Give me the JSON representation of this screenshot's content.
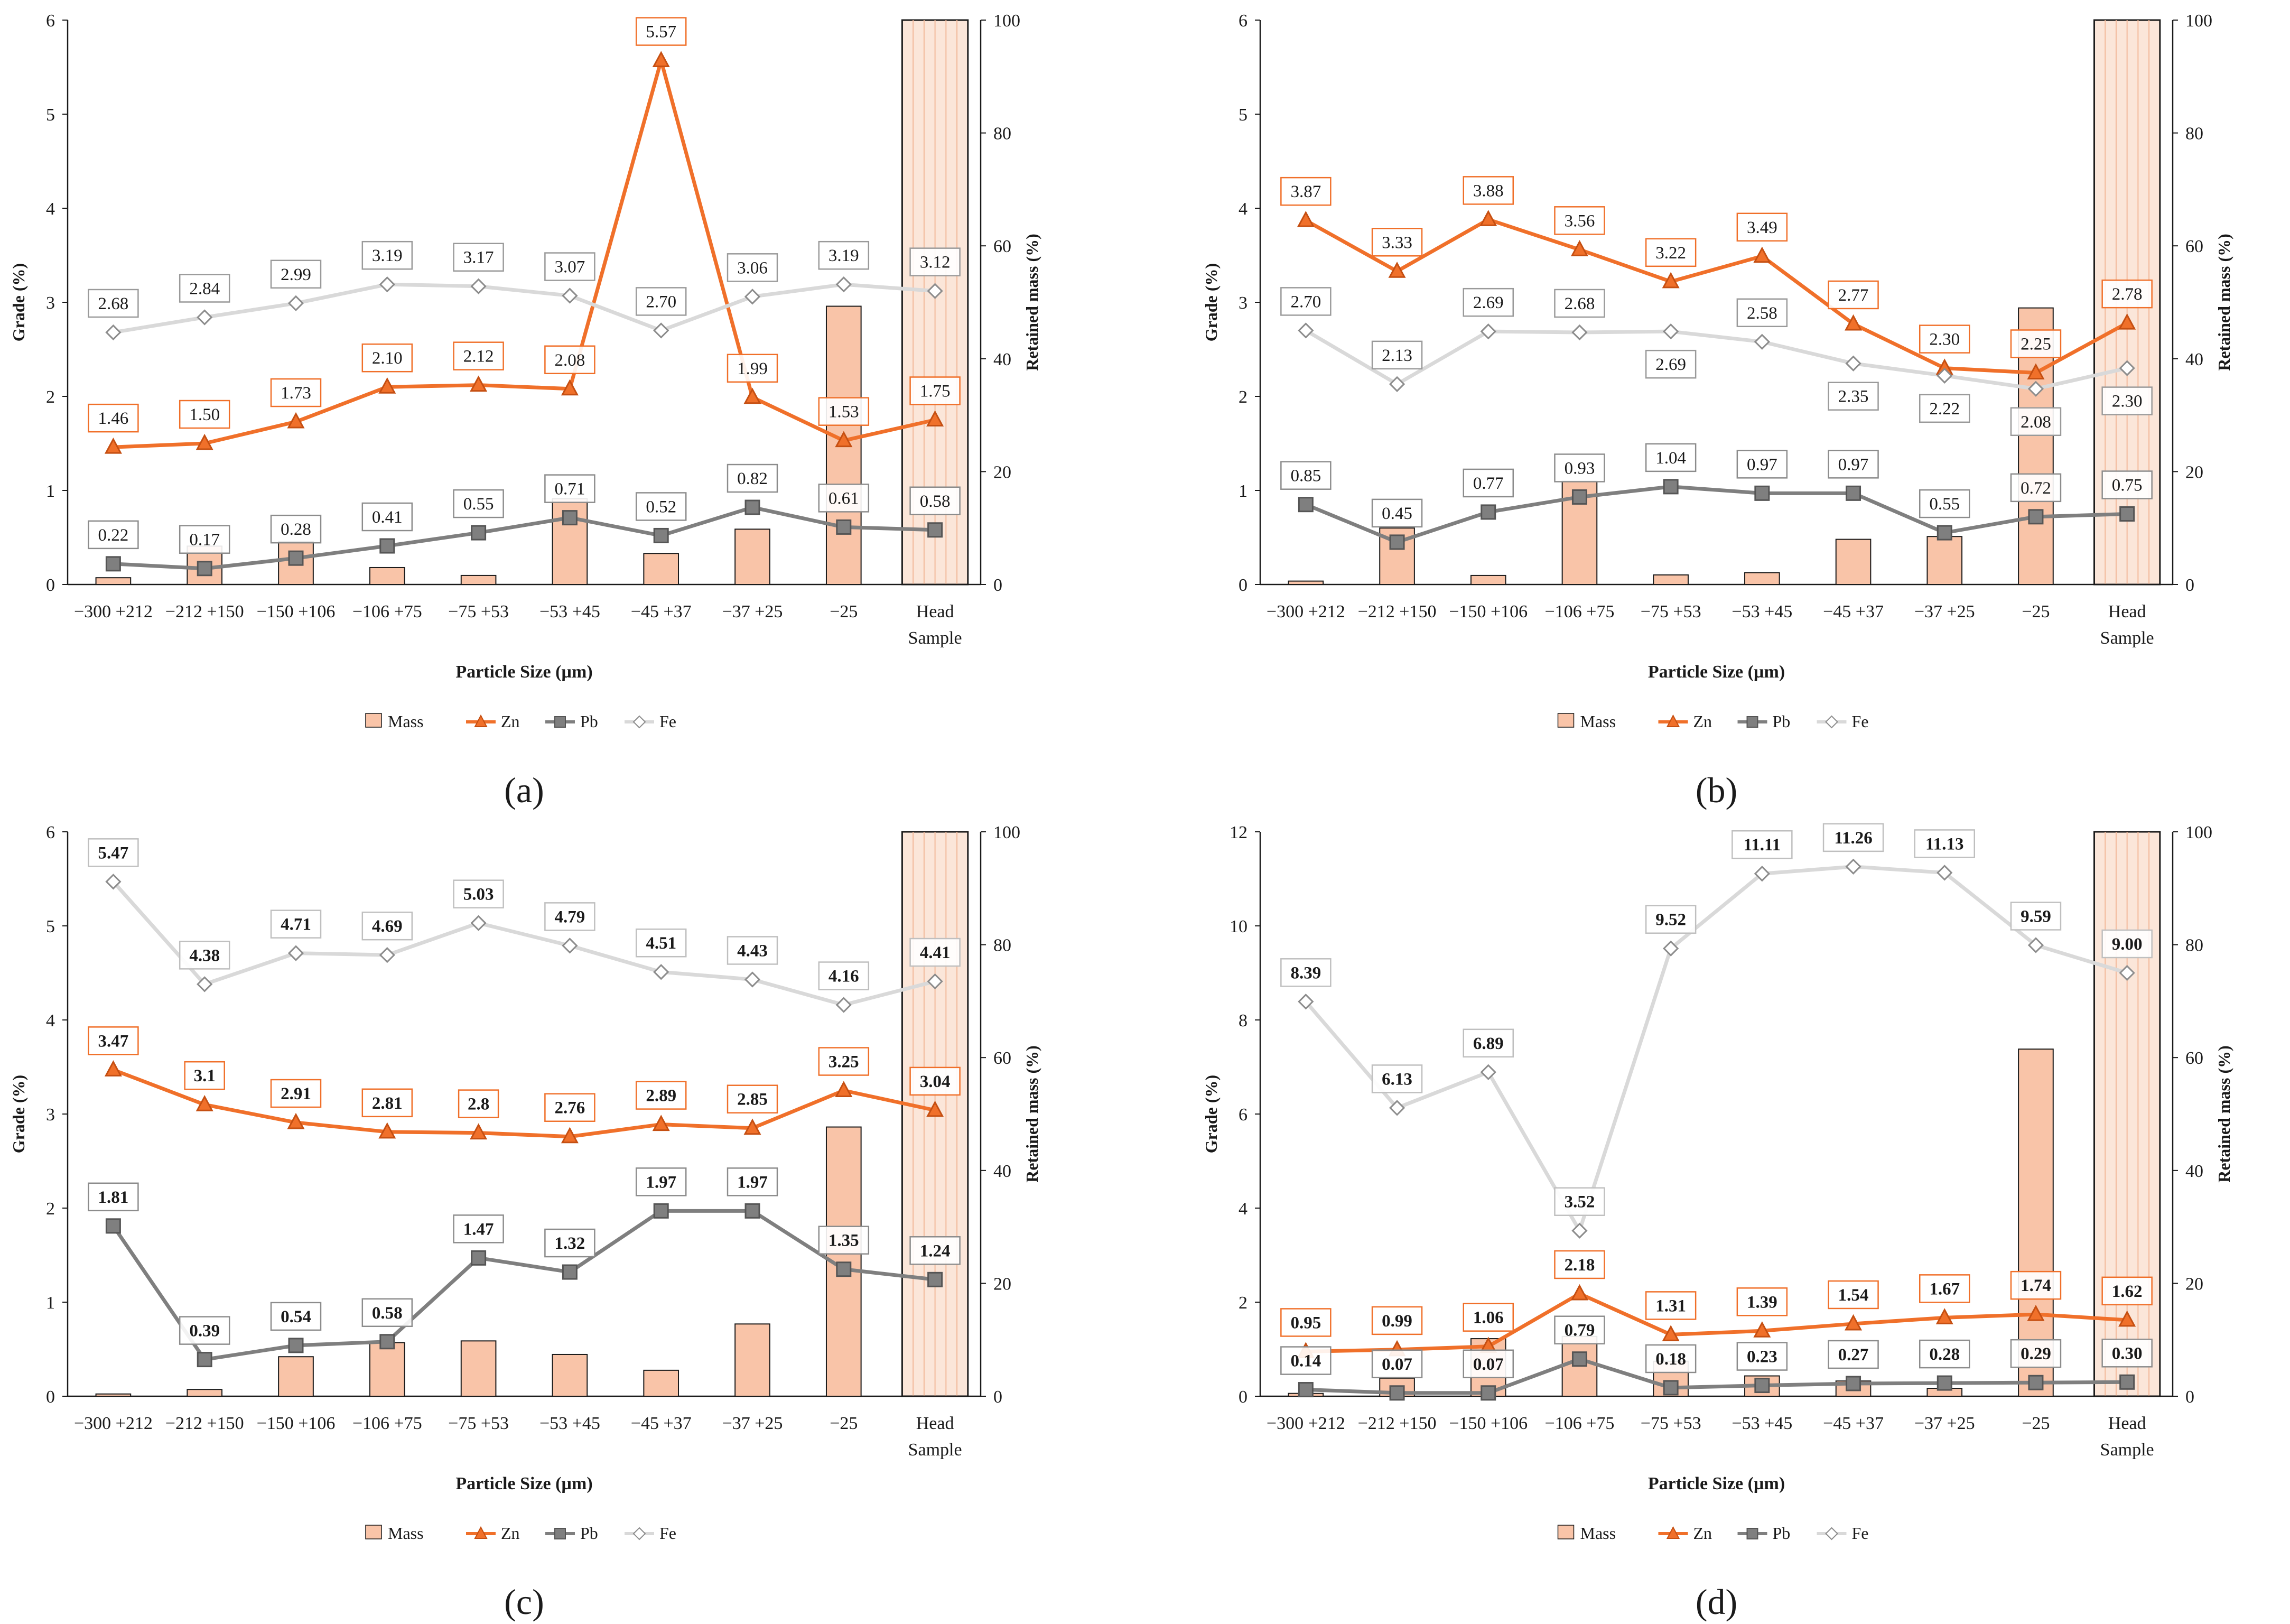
{
  "colors": {
    "mass_fill": "#f9c4a8",
    "mass_stroke": "#1a1a1a",
    "zn": "#f0702a",
    "zn_marker": "#c54f12",
    "pb": "#7f7f7f",
    "pb_marker": "#555555",
    "fe": "#d9d9d9",
    "fe_marker_fill": "#ffffff",
    "fe_marker_stroke": "#8c8c8c",
    "head_band": "#fbe6d9"
  },
  "common": {
    "categories": [
      "−300 +212",
      "−212 +150",
      "−150 +106",
      "−106 +75",
      "−75 +53",
      "−53 +45",
      "−45 +37",
      "−37 +25",
      "−25",
      "Head Sample"
    ],
    "xlabel": "Particle Size (µm)",
    "ylabel": "Grade (%)",
    "y2label": "Retained mass (%)",
    "legend": [
      "Mass",
      "Zn",
      "Pb",
      "Fe"
    ]
  },
  "chart_data": [
    {
      "type": "bar+line",
      "panel_label": "(a)",
      "ylim": [
        0,
        6
      ],
      "yticks": [
        0,
        1,
        2,
        3,
        4,
        5,
        6
      ],
      "y2lim": [
        0,
        100
      ],
      "y2ticks": [
        0,
        20,
        40,
        60,
        80,
        100
      ],
      "bold_labels": false,
      "mass": [
        1.2,
        6.8,
        7.6,
        3.0,
        1.6,
        15.2,
        5.5,
        9.8,
        49.3,
        null
      ],
      "series": [
        {
          "name": "Zn",
          "values": [
            1.46,
            1.5,
            1.73,
            2.1,
            2.12,
            2.08,
            5.57,
            1.99,
            1.53,
            1.75
          ],
          "labels": [
            "1.46",
            "1.50",
            "1.73",
            "2.10",
            "2.12",
            "2.08",
            "5.57",
            "1.99",
            "1.53",
            "1.75"
          ]
        },
        {
          "name": "Pb",
          "values": [
            0.22,
            0.17,
            0.28,
            0.41,
            0.55,
            0.71,
            0.52,
            0.82,
            0.61,
            0.58
          ],
          "labels": [
            "0.22",
            "0.17",
            "0.28",
            "0.41",
            "0.55",
            "0.71",
            "0.52",
            "0.82",
            "0.61",
            "0.58"
          ]
        },
        {
          "name": "Fe",
          "values": [
            2.68,
            2.84,
            2.99,
            3.19,
            3.17,
            3.07,
            2.7,
            3.06,
            3.19,
            3.12
          ],
          "labels": [
            "2.68",
            "2.84",
            "2.99",
            "3.19",
            "3.17",
            "3.07",
            "2.70",
            "3.06",
            "3.19",
            "3.12"
          ]
        }
      ]
    },
    {
      "type": "bar+line",
      "panel_label": "(b)",
      "ylim": [
        0,
        6
      ],
      "yticks": [
        0,
        1,
        2,
        3,
        4,
        5,
        6
      ],
      "y2lim": [
        0,
        100
      ],
      "y2ticks": [
        0,
        20,
        40,
        60,
        80,
        100
      ],
      "bold_labels": false,
      "mass": [
        0.6,
        10.0,
        1.6,
        18.3,
        1.7,
        2.1,
        8.0,
        8.5,
        49.0,
        null
      ],
      "series": [
        {
          "name": "Zn",
          "values": [
            3.87,
            3.33,
            3.88,
            3.56,
            3.22,
            3.49,
            2.77,
            2.3,
            2.25,
            2.78
          ],
          "labels": [
            "3.87",
            "3.33",
            "3.88",
            "3.56",
            "3.22",
            "3.49",
            "2.77",
            "2.30",
            "2.25",
            "2.78"
          ]
        },
        {
          "name": "Pb",
          "values": [
            0.85,
            0.45,
            0.77,
            0.93,
            1.04,
            0.97,
            0.97,
            0.55,
            0.72,
            0.75
          ],
          "labels": [
            "0.85",
            "0.45",
            "0.77",
            "0.93",
            "1.04",
            "0.97",
            "0.97",
            "0.55",
            "0.72",
            "0.75"
          ]
        },
        {
          "name": "Fe",
          "values": [
            2.7,
            2.13,
            2.69,
            2.68,
            2.69,
            2.58,
            2.35,
            2.22,
            2.08,
            2.3
          ],
          "labels": [
            "2.70",
            "2.13",
            "2.69",
            "2.68",
            "2.69",
            "2.58",
            "2.35",
            "2.22",
            "2.08",
            "2.30"
          ]
        }
      ]
    },
    {
      "type": "bar+line",
      "panel_label": "(c)",
      "ylim": [
        0,
        6
      ],
      "yticks": [
        0,
        1,
        2,
        3,
        4,
        5,
        6
      ],
      "y2lim": [
        0,
        100
      ],
      "y2ticks": [
        0,
        20,
        40,
        60,
        80,
        100
      ],
      "bold_labels": true,
      "mass": [
        0.4,
        1.2,
        7.0,
        9.5,
        9.8,
        7.4,
        4.6,
        12.8,
        47.7,
        null
      ],
      "series": [
        {
          "name": "Zn",
          "values": [
            3.47,
            3.1,
            2.91,
            2.81,
            2.8,
            2.76,
            2.89,
            2.85,
            3.25,
            3.04
          ],
          "labels": [
            "3.47",
            "3.1",
            "2.91",
            "2.81",
            "2.8",
            "2.76",
            "2.89",
            "2.85",
            "3.25",
            "3.04"
          ]
        },
        {
          "name": "Pb",
          "values": [
            1.81,
            0.39,
            0.54,
            0.58,
            1.47,
            1.32,
            1.97,
            1.97,
            1.35,
            1.24
          ],
          "labels": [
            "1.81",
            "0.39",
            "0.54",
            "0.58",
            "1.47",
            "1.32",
            "1.97",
            "1.97",
            "1.35",
            "1.24"
          ]
        },
        {
          "name": "Fe",
          "values": [
            5.47,
            4.38,
            4.71,
            4.69,
            5.03,
            4.79,
            4.51,
            4.43,
            4.16,
            4.41
          ],
          "labels": [
            "5.47",
            "4.38",
            "4.71",
            "4.69",
            "5.03",
            "4.79",
            "4.51",
            "4.43",
            "4.16",
            "4.41"
          ]
        }
      ]
    },
    {
      "type": "bar+line",
      "panel_label": "(d)",
      "ylim": [
        0,
        12
      ],
      "yticks": [
        0,
        2,
        4,
        6,
        8,
        10,
        12
      ],
      "y2lim": [
        0,
        100
      ],
      "y2ticks": [
        0,
        20,
        40,
        60,
        80,
        100
      ],
      "bold_labels": true,
      "mass": [
        0.5,
        3.2,
        10.2,
        10.6,
        6.2,
        3.6,
        2.7,
        1.4,
        61.5,
        null
      ],
      "series": [
        {
          "name": "Zn",
          "values": [
            0.95,
            0.99,
            1.06,
            2.18,
            1.31,
            1.39,
            1.54,
            1.67,
            1.74,
            1.62
          ],
          "labels": [
            "0.95",
            "0.99",
            "1.06",
            "2.18",
            "1.31",
            "1.39",
            "1.54",
            "1.67",
            "1.74",
            "1.62"
          ]
        },
        {
          "name": "Pb",
          "values": [
            0.14,
            0.07,
            0.07,
            0.79,
            0.18,
            0.23,
            0.27,
            0.28,
            0.29,
            0.3
          ],
          "labels": [
            "0.14",
            "0.07",
            "0.07",
            "0.79",
            "0.18",
            "0.23",
            "0.27",
            "0.28",
            "0.29",
            "0.30"
          ]
        },
        {
          "name": "Fe",
          "values": [
            8.39,
            6.13,
            6.89,
            3.52,
            9.52,
            11.11,
            11.26,
            11.13,
            9.59,
            9.0
          ],
          "labels": [
            "8.39",
            "6.13",
            "6.89",
            "3.52",
            "9.52",
            "11.11",
            "11.26",
            "11.13",
            "9.59",
            "9.00"
          ]
        }
      ]
    }
  ]
}
